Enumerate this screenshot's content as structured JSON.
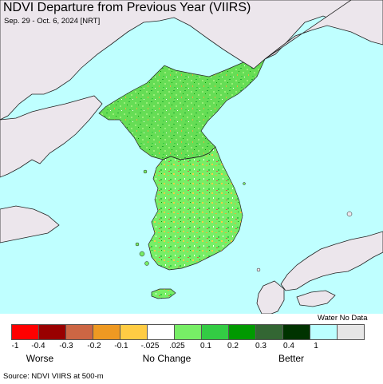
{
  "title": "NDVI Departure from Previous Year (VIIRS)",
  "subtitle": "Sep. 29 - Oct. 6, 2024 [NRT]",
  "colors": {
    "water": "#bfffff",
    "land_nodata": "#ece6ec",
    "ndvi_green": "#66dd55",
    "ndvi_light": "#99ee77",
    "ndvi_dark": "#22aa33",
    "ndvi_orange": "#e8b040",
    "border": "#333333"
  },
  "legend": {
    "water_label": "Water No Data",
    "swatches": [
      {
        "color": "#ff0000"
      },
      {
        "color": "#990000"
      },
      {
        "color": "#cc6644"
      },
      {
        "color": "#ee9922"
      },
      {
        "color": "#ffcc44"
      },
      {
        "color": "#ffffff"
      },
      {
        "color": "#77ee66"
      },
      {
        "color": "#33cc44"
      },
      {
        "color": "#009900"
      },
      {
        "color": "#336633"
      },
      {
        "color": "#003300"
      },
      {
        "color": "#bbffff"
      },
      {
        "color": "#e6e6e6"
      }
    ],
    "ticks": [
      "-1",
      "-0.4",
      "-0.3",
      "-0.2",
      "-0.1",
      "-.025",
      ".025",
      "0.1",
      "0.2",
      "0.3",
      "0.4",
      "1"
    ],
    "qualitative": [
      "Worse",
      "No Change",
      "Better"
    ]
  },
  "source": "Source: NDVI VIIRS at 500-m"
}
